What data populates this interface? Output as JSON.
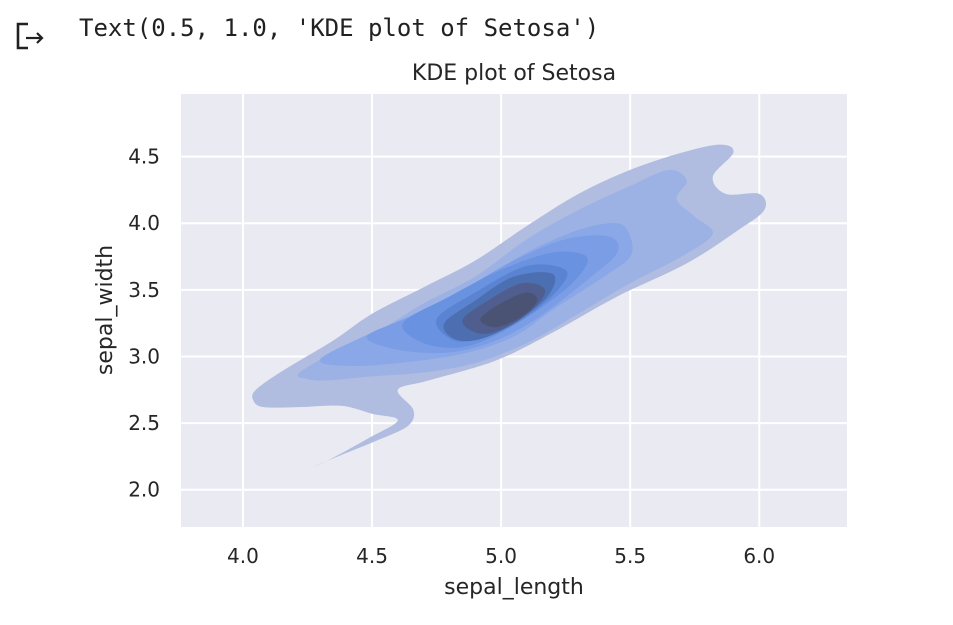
{
  "output": {
    "icon": "output-arrow-icon",
    "text": "Text(0.5, 1.0, 'KDE plot of Setosa')"
  },
  "chart_data": {
    "type": "kde-contour",
    "title": "KDE plot of Setosa",
    "xlabel": "sepal_length",
    "ylabel": "sepal_width",
    "xlim": [
      3.76,
      6.34
    ],
    "ylim": [
      1.72,
      4.97
    ],
    "xticks": [
      4.0,
      4.5,
      5.0,
      5.5,
      6.0
    ],
    "yticks": [
      2.0,
      2.5,
      3.0,
      3.5,
      4.0,
      4.5
    ],
    "xtick_labels": [
      "4.0",
      "4.5",
      "5.0",
      "5.5",
      "6.0"
    ],
    "ytick_labels": [
      "2.0",
      "2.5",
      "3.0",
      "3.5",
      "4.0",
      "4.5"
    ],
    "grid": true,
    "shading": "filled",
    "colors": {
      "plot_background": "#eaeaf2",
      "grid": "#ffffff",
      "levels": [
        "#b0bde0",
        "#9db2e4",
        "#8aa7e7",
        "#7a9de6",
        "#6992e0",
        "#5a84d2",
        "#4c6fb1",
        "#4f5e8f",
        "#4a5373"
      ]
    },
    "levels": [
      {
        "name": "level-1",
        "outline": [
          [
            4.05,
            2.75
          ],
          [
            4.16,
            2.9
          ],
          [
            4.35,
            3.12
          ],
          [
            4.5,
            3.32
          ],
          [
            4.7,
            3.52
          ],
          [
            4.9,
            3.72
          ],
          [
            5.1,
            3.98
          ],
          [
            5.3,
            4.22
          ],
          [
            5.5,
            4.4
          ],
          [
            5.7,
            4.53
          ],
          [
            5.85,
            4.59
          ],
          [
            5.9,
            4.53
          ],
          [
            5.82,
            4.35
          ],
          [
            5.87,
            4.22
          ],
          [
            6.0,
            4.22
          ],
          [
            6.02,
            4.1
          ],
          [
            5.92,
            3.95
          ],
          [
            5.72,
            3.7
          ],
          [
            5.45,
            3.45
          ],
          [
            5.2,
            3.18
          ],
          [
            4.98,
            2.97
          ],
          [
            4.72,
            2.82
          ],
          [
            4.6,
            2.75
          ],
          [
            4.66,
            2.6
          ],
          [
            4.64,
            2.48
          ],
          [
            4.52,
            2.37
          ],
          [
            4.38,
            2.26
          ],
          [
            4.27,
            2.17
          ],
          [
            4.33,
            2.22
          ],
          [
            4.48,
            2.38
          ],
          [
            4.6,
            2.52
          ],
          [
            4.5,
            2.57
          ],
          [
            4.38,
            2.63
          ],
          [
            4.22,
            2.62
          ],
          [
            4.08,
            2.62
          ],
          [
            4.04,
            2.67
          ]
        ]
      },
      {
        "name": "level-2",
        "outline": [
          [
            4.22,
            2.88
          ],
          [
            4.4,
            3.08
          ],
          [
            4.55,
            3.22
          ],
          [
            4.7,
            3.4
          ],
          [
            4.9,
            3.6
          ],
          [
            5.1,
            3.88
          ],
          [
            5.3,
            4.1
          ],
          [
            5.5,
            4.28
          ],
          [
            5.65,
            4.4
          ],
          [
            5.72,
            4.32
          ],
          [
            5.68,
            4.18
          ],
          [
            5.75,
            4.05
          ],
          [
            5.82,
            3.92
          ],
          [
            5.7,
            3.75
          ],
          [
            5.5,
            3.55
          ],
          [
            5.3,
            3.32
          ],
          [
            5.1,
            3.1
          ],
          [
            4.9,
            2.95
          ],
          [
            4.7,
            2.88
          ],
          [
            4.5,
            2.85
          ],
          [
            4.33,
            2.82
          ],
          [
            4.25,
            2.83
          ]
        ]
      },
      {
        "name": "level-3",
        "outline": [
          [
            4.3,
            2.98
          ],
          [
            4.5,
            3.18
          ],
          [
            4.7,
            3.35
          ],
          [
            4.9,
            3.55
          ],
          [
            5.1,
            3.78
          ],
          [
            5.3,
            3.95
          ],
          [
            5.45,
            4.0
          ],
          [
            5.5,
            3.9
          ],
          [
            5.5,
            3.75
          ],
          [
            5.4,
            3.6
          ],
          [
            5.2,
            3.35
          ],
          [
            5.05,
            3.15
          ],
          [
            4.85,
            3.02
          ],
          [
            4.6,
            2.95
          ],
          [
            4.4,
            2.93
          ]
        ]
      },
      {
        "name": "level-4",
        "outline": [
          [
            4.48,
            3.15
          ],
          [
            4.65,
            3.3
          ],
          [
            4.85,
            3.5
          ],
          [
            5.05,
            3.72
          ],
          [
            5.25,
            3.88
          ],
          [
            5.42,
            3.9
          ],
          [
            5.45,
            3.78
          ],
          [
            5.35,
            3.6
          ],
          [
            5.15,
            3.3
          ],
          [
            4.98,
            3.12
          ],
          [
            4.8,
            3.03
          ],
          [
            4.6,
            3.05
          ]
        ]
      },
      {
        "name": "level-5",
        "outline": [
          [
            4.62,
            3.25
          ],
          [
            4.8,
            3.45
          ],
          [
            5.0,
            3.65
          ],
          [
            5.2,
            3.78
          ],
          [
            5.33,
            3.75
          ],
          [
            5.3,
            3.6
          ],
          [
            5.18,
            3.4
          ],
          [
            5.0,
            3.18
          ],
          [
            4.85,
            3.07
          ],
          [
            4.7,
            3.1
          ]
        ]
      },
      {
        "name": "level-6",
        "outline": [
          [
            4.75,
            3.28
          ],
          [
            4.9,
            3.48
          ],
          [
            5.1,
            3.68
          ],
          [
            5.25,
            3.65
          ],
          [
            5.22,
            3.5
          ],
          [
            5.1,
            3.3
          ],
          [
            4.95,
            3.15
          ],
          [
            4.82,
            3.12
          ]
        ]
      },
      {
        "name": "level-7",
        "outline": [
          [
            4.78,
            3.25
          ],
          [
            4.9,
            3.42
          ],
          [
            5.05,
            3.6
          ],
          [
            5.2,
            3.62
          ],
          [
            5.18,
            3.45
          ],
          [
            5.05,
            3.25
          ],
          [
            4.92,
            3.13
          ],
          [
            4.82,
            3.13
          ]
        ]
      },
      {
        "name": "level-8",
        "outline": [
          [
            4.85,
            3.27
          ],
          [
            4.95,
            3.42
          ],
          [
            5.08,
            3.55
          ],
          [
            5.17,
            3.5
          ],
          [
            5.12,
            3.35
          ],
          [
            5.02,
            3.22
          ],
          [
            4.92,
            3.17
          ]
        ]
      },
      {
        "name": "level-9",
        "outline": [
          [
            4.92,
            3.28
          ],
          [
            5.0,
            3.4
          ],
          [
            5.1,
            3.48
          ],
          [
            5.14,
            3.42
          ],
          [
            5.08,
            3.3
          ],
          [
            4.98,
            3.22
          ]
        ]
      }
    ]
  }
}
